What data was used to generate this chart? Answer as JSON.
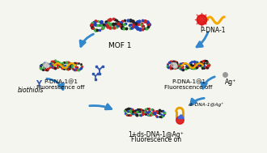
{
  "background_color": "#f5f5f0",
  "labels": {
    "mof1": "MOF 1",
    "pdna1": "P-DNA-1",
    "pdna1at1_left": "P-DNA-1@1\nFluorescence off",
    "pdna1at1_right": "P-DNA-1@1\nFluorescence off",
    "bottom_center_line1": "1+ds-DNA-1@Ag⁺",
    "bottom_center_line2": "Fluorescence on",
    "bottom_super": "ds-DNA-1@Ag⁺",
    "biothiols": "biothiols",
    "agplus": "Ag⁺"
  },
  "colors": {
    "mof_dark": "#222222",
    "mof_green": "#44aa44",
    "mof_red": "#cc2222",
    "mof_blue": "#2244bb",
    "arrow_blue": "#3388cc",
    "orange": "#f5a800",
    "red_blob": "#dd1111",
    "silver": "#aaaaaa",
    "silver_light": "#cccccc",
    "blue_shape": "#3355aa",
    "gold": "#e8a000",
    "small_silver": "#999999",
    "bg": "#f5f5f0"
  },
  "figsize": [
    3.3,
    1.89
  ],
  "dpi": 100
}
